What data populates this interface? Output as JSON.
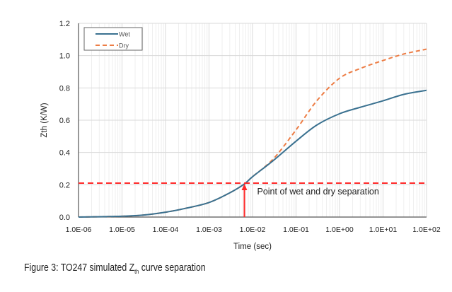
{
  "chart_data": {
    "type": "line",
    "title": "",
    "xlabel": "Time (sec)",
    "ylabel": "Zth (K/W)",
    "xscale": "log",
    "xlim": [
      1e-06,
      100
    ],
    "ylim": [
      0,
      1.2
    ],
    "x_ticks": [
      "1.0E-06",
      "1.0E-05",
      "1.0E-04",
      "1.0E-03",
      "1.0E-02",
      "1.0E-01",
      "1.0E+00",
      "1.0E+01",
      "1.0E+02"
    ],
    "y_ticks": [
      "0.0",
      "0.2",
      "0.4",
      "0.6",
      "0.8",
      "1.0",
      "1.2"
    ],
    "grid": true,
    "legend_position": "top-left",
    "series": [
      {
        "name": "Wet",
        "color": "#3a7190",
        "style": "solid",
        "x": [
          1e-06,
          1e-05,
          3e-05,
          0.0001,
          0.0003,
          0.001,
          0.003,
          0.0065,
          0.01,
          0.03,
          0.1,
          0.3,
          1.0,
          3.0,
          10.0,
          30.0,
          100.0
        ],
        "y": [
          0,
          0.005,
          0.012,
          0.03,
          0.055,
          0.09,
          0.15,
          0.205,
          0.25,
          0.35,
          0.47,
          0.57,
          0.64,
          0.68,
          0.72,
          0.76,
          0.785
        ]
      },
      {
        "name": "Dry",
        "color": "#ed7d45",
        "style": "dashed",
        "x": [
          1e-06,
          1e-05,
          3e-05,
          0.0001,
          0.0003,
          0.001,
          0.003,
          0.0065,
          0.01,
          0.03,
          0.1,
          0.3,
          1.0,
          3.0,
          10.0,
          30.0,
          100.0
        ],
        "y": [
          0,
          0.005,
          0.012,
          0.03,
          0.055,
          0.09,
          0.15,
          0.205,
          0.25,
          0.36,
          0.54,
          0.72,
          0.86,
          0.92,
          0.97,
          1.01,
          1.04
        ]
      }
    ],
    "annotations": {
      "hline_y": 0.21,
      "arrow_x": 0.0065,
      "label": "Point of wet and dry separation",
      "color": "#ff2a2a"
    }
  },
  "caption": {
    "prefix": "Figure 3: TO247 simulated Z",
    "sub": "th",
    "suffix": " curve separation"
  }
}
